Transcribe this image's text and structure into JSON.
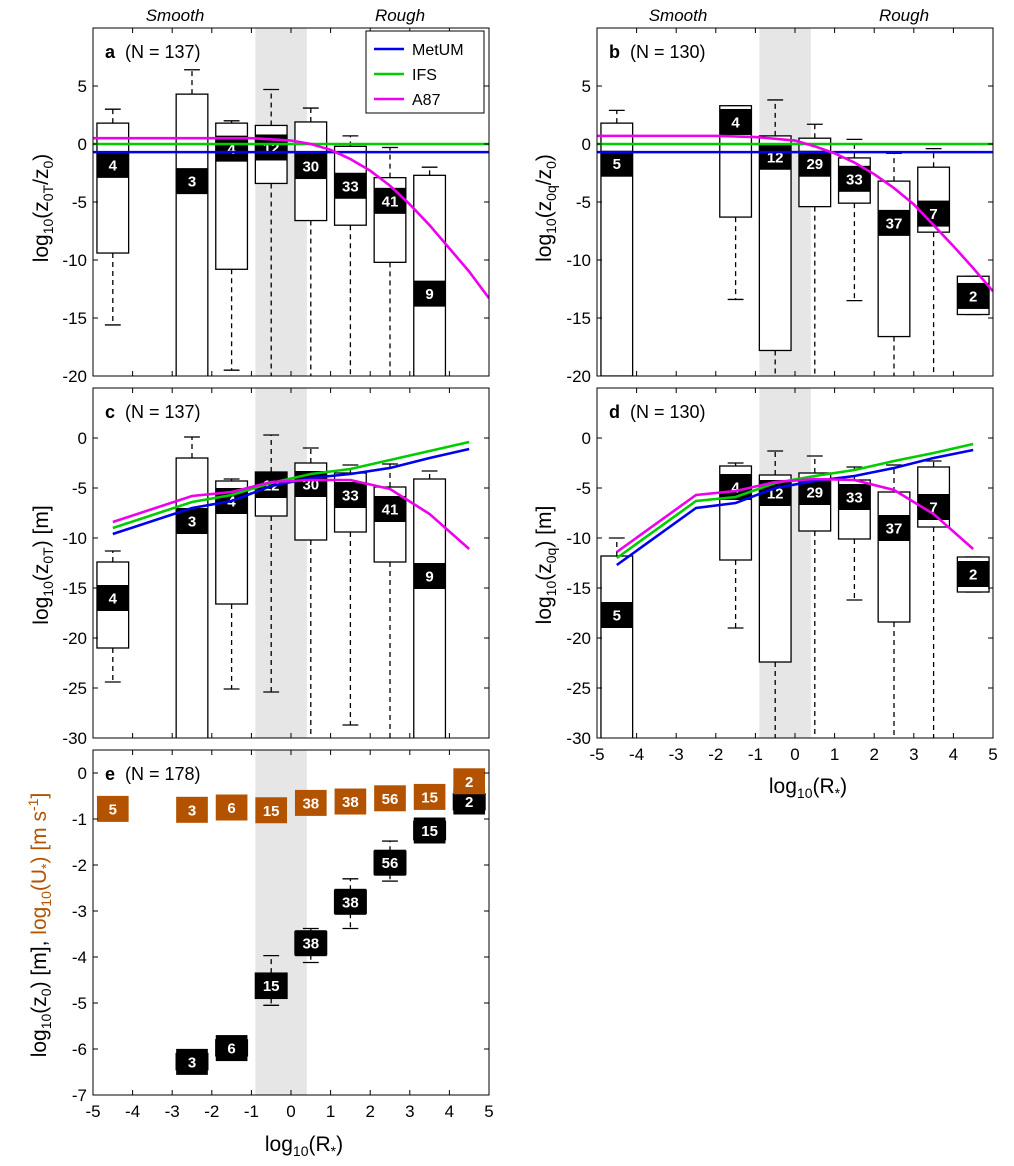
{
  "colors": {
    "MetUM": "#0000ee",
    "IFS": "#00cc00",
    "A87": "#ee00ee",
    "ustar": "#b35300",
    "shade": "#e6e6e6",
    "black": "#000000"
  },
  "header": {
    "smooth": "Smooth",
    "rough": "Rough"
  },
  "axes": {
    "x_label": "log",
    "x_sub": "10",
    "x_tail": "(R",
    "x_star": "*",
    "x_close": ")",
    "y_a": {
      "log": "log",
      "sub": "10",
      "t1": "(z",
      "s1": "0T",
      "t2": "/z",
      "s2": "0",
      "t3": ")"
    },
    "y_b": {
      "log": "log",
      "sub": "10",
      "t1": "(z",
      "s1": "0q",
      "t2": "/z",
      "s2": "0",
      "t3": ")"
    },
    "y_c": {
      "log": "log",
      "sub": "10",
      "t1": "(z",
      "s1": "0T",
      "t2": ") [m]"
    },
    "y_d": {
      "log": "log",
      "sub": "10",
      "t1": "(z",
      "s1": "0q",
      "t2": ") [m]"
    },
    "y_e": {
      "log": "log",
      "sub": "10",
      "t1": "(z",
      "s1": "0",
      "t2": ") [m], ",
      "log2": "log",
      "sub2": "10",
      "t3": "(U",
      "star": "*",
      "t4": ") [m s",
      "sup": "-1",
      "t5": "]"
    }
  },
  "chart_data": [
    {
      "id": "a",
      "type": "box",
      "panel_letter": "a",
      "panel_note": "(N = 137)",
      "xlim": [
        -5,
        5
      ],
      "ylim": [
        -20,
        10
      ],
      "yticks": [
        5,
        0,
        -5,
        -10,
        -15,
        -20
      ],
      "shade": [
        -0.9,
        0.4
      ],
      "legend": [
        "MetUM",
        "IFS",
        "A87"
      ],
      "lines": [
        {
          "name": "MetUM",
          "x": [
            -5,
            5
          ],
          "y": [
            -0.7,
            -0.7
          ]
        },
        {
          "name": "IFS",
          "x": [
            -5,
            5
          ],
          "y": [
            0,
            0
          ]
        },
        {
          "name": "A87",
          "x": [
            -5,
            -4,
            -3,
            -2,
            -1,
            0,
            0.5,
            1,
            1.5,
            2,
            2.5,
            3,
            3.5,
            4,
            4.5,
            5
          ],
          "y": [
            0.5,
            0.5,
            0.5,
            0.5,
            0.5,
            0.3,
            0,
            -0.5,
            -1.3,
            -2.3,
            -3.6,
            -5.2,
            -7.0,
            -9.0,
            -11.0,
            -13.3
          ]
        }
      ],
      "boxes": [
        {
          "x": -4.5,
          "n": "4",
          "q1": -9.4,
          "q3": 1.8,
          "med": -1.8,
          "wlo": -15.6,
          "whi": 3.0
        },
        {
          "x": -2.5,
          "n": "3",
          "q1": -22,
          "q3": 4.3,
          "med": -3.2,
          "wlo": -22,
          "whi": 6.4
        },
        {
          "x": -1.5,
          "n": "4",
          "q1": -10.8,
          "q3": 1.8,
          "med": -0.4,
          "wlo": -19.5,
          "whi": 2.0
        },
        {
          "x": -0.5,
          "n": "12",
          "q1": -3.4,
          "q3": 1.6,
          "med": -0.3,
          "wlo": -22,
          "whi": 4.7
        },
        {
          "x": 0.5,
          "n": "30",
          "q1": -6.6,
          "q3": 1.9,
          "med": -1.9,
          "wlo": -22,
          "whi": 3.1
        },
        {
          "x": 1.5,
          "n": "33",
          "q1": -7.0,
          "q3": -0.2,
          "med": -3.6,
          "wlo": -22,
          "whi": 0.7
        },
        {
          "x": 2.5,
          "n": "41",
          "q1": -10.2,
          "q3": -2.9,
          "med": -4.9,
          "wlo": -22,
          "whi": -0.3
        },
        {
          "x": 3.5,
          "n": "9",
          "q1": -22,
          "q3": -2.7,
          "med": -12.9,
          "wlo": -22,
          "whi": -2.0
        }
      ]
    },
    {
      "id": "b",
      "type": "box",
      "panel_letter": "b",
      "panel_note": "(N = 130)",
      "xlim": [
        -5,
        5
      ],
      "ylim": [
        -20,
        10
      ],
      "yticks": [
        5,
        0,
        -5,
        -10,
        -15,
        -20
      ],
      "shade": [
        -0.9,
        0.4
      ],
      "lines": [
        {
          "name": "MetUM",
          "x": [
            -5,
            5
          ],
          "y": [
            -0.7,
            -0.7
          ]
        },
        {
          "name": "IFS",
          "x": [
            -5,
            5
          ],
          "y": [
            0,
            0
          ]
        },
        {
          "name": "A87",
          "x": [
            -5,
            -4,
            -3,
            -2,
            -1,
            0,
            0.5,
            1,
            1.5,
            2,
            2.5,
            3,
            3.5,
            4,
            4.5,
            5
          ],
          "y": [
            0.7,
            0.7,
            0.7,
            0.7,
            0.6,
            0.3,
            -0.2,
            -0.8,
            -1.6,
            -2.6,
            -3.8,
            -5.2,
            -7.0,
            -8.8,
            -10.7,
            -12.7
          ]
        }
      ],
      "boxes": [
        {
          "x": -4.5,
          "n": "5",
          "q1": -20,
          "q3": 1.8,
          "med": -1.7,
          "wlo": -20,
          "whi": 2.9
        },
        {
          "x": -1.5,
          "n": "4",
          "q1": -6.3,
          "q3": 3.3,
          "med": 1.9,
          "wlo": -13.4,
          "whi": 3.3
        },
        {
          "x": -0.5,
          "n": "12",
          "q1": -17.8,
          "q3": 0.7,
          "med": -1.1,
          "wlo": -22,
          "whi": 3.8
        },
        {
          "x": 0.5,
          "n": "29",
          "q1": -5.4,
          "q3": 0.5,
          "med": -1.7,
          "wlo": -22,
          "whi": 1.7
        },
        {
          "x": 1.5,
          "n": "33",
          "q1": -5.1,
          "q3": -1.2,
          "med": -3.0,
          "wlo": -13.5,
          "whi": 0.4
        },
        {
          "x": 2.5,
          "n": "37",
          "q1": -16.6,
          "q3": -3.2,
          "med": -6.8,
          "wlo": -22,
          "whi": -0.8
        },
        {
          "x": 3.5,
          "n": "7",
          "q1": -7.6,
          "q3": -2.0,
          "med": -6.0,
          "wlo": -22,
          "whi": -0.4
        },
        {
          "x": 4.5,
          "n": "2",
          "q1": -14.7,
          "q3": -11.4,
          "med": -13.1,
          "wlo": -14.7,
          "whi": -11.4
        }
      ]
    },
    {
      "id": "c",
      "type": "box",
      "panel_letter": "c",
      "panel_note": "(N = 137)",
      "xlim": [
        -5,
        5
      ],
      "ylim": [
        -30,
        5
      ],
      "yticks": [
        0,
        -5,
        -10,
        -15,
        -20,
        -25,
        -30
      ],
      "shade": [
        -0.9,
        0.4
      ],
      "lines": [
        {
          "name": "MetUM",
          "x": [
            -4.5,
            -2.5,
            -1.5,
            -0.5,
            0.5,
            1.5,
            2.5,
            3.5,
            4.5
          ],
          "y": [
            -9.6,
            -7.0,
            -6.3,
            -4.8,
            -4.0,
            -3.6,
            -3.0,
            -2.0,
            -1.1
          ]
        },
        {
          "name": "IFS",
          "x": [
            -4.5,
            -2.5,
            -1.5,
            -0.5,
            0.5,
            1.5,
            2.5,
            3.5,
            4.5
          ],
          "y": [
            -9.0,
            -6.4,
            -5.7,
            -4.5,
            -3.6,
            -3.1,
            -2.2,
            -1.3,
            -0.4
          ]
        },
        {
          "name": "A87",
          "x": [
            -4.5,
            -2.5,
            -1.5,
            -0.5,
            0.5,
            1.5,
            2.5,
            3.5,
            4.5
          ],
          "y": [
            -8.4,
            -5.8,
            -5.4,
            -4.4,
            -4.2,
            -4.2,
            -5.1,
            -7.6,
            -11.1
          ]
        }
      ],
      "boxes": [
        {
          "x": -4.5,
          "n": "4",
          "q1": -21.0,
          "q3": -12.4,
          "med": -16.0,
          "wlo": -24.4,
          "whi": -11.3
        },
        {
          "x": -2.5,
          "n": "3",
          "q1": -32,
          "q3": -2.0,
          "med": -8.3,
          "wlo": -32,
          "whi": 0.1
        },
        {
          "x": -1.5,
          "n": "4",
          "q1": -16.6,
          "q3": -4.3,
          "med": -6.3,
          "wlo": -25.1,
          "whi": -4.1
        },
        {
          "x": -0.5,
          "n": "12",
          "q1": -7.8,
          "q3": -3.4,
          "med": -4.7,
          "wlo": -25.4,
          "whi": 0.3
        },
        {
          "x": 0.5,
          "n": "30",
          "q1": -10.2,
          "q3": -2.5,
          "med": -4.6,
          "wlo": -32,
          "whi": -1.0
        },
        {
          "x": 1.5,
          "n": "33",
          "q1": -9.4,
          "q3": -3.5,
          "med": -5.7,
          "wlo": -28.7,
          "whi": -2.7
        },
        {
          "x": 2.5,
          "n": "41",
          "q1": -12.4,
          "q3": -4.9,
          "med": -7.1,
          "wlo": -32,
          "whi": -2.6
        },
        {
          "x": 3.5,
          "n": "9",
          "q1": -32,
          "q3": -4.1,
          "med": -13.8,
          "wlo": -32,
          "whi": -3.3
        }
      ]
    },
    {
      "id": "d",
      "type": "box",
      "panel_letter": "d",
      "panel_note": "(N = 130)",
      "xlim": [
        -5,
        5
      ],
      "ylim": [
        -30,
        5
      ],
      "yticks": [
        0,
        -5,
        -10,
        -15,
        -20,
        -25,
        -30
      ],
      "xticks": [
        -5,
        -4,
        -3,
        -2,
        -1,
        0,
        1,
        2,
        3,
        4,
        5
      ],
      "shade": [
        -0.9,
        0.4
      ],
      "lines": [
        {
          "name": "MetUM",
          "x": [
            -4.5,
            -2.5,
            -1.5,
            -0.5,
            0.5,
            1.5,
            2.5,
            3.5,
            4.5
          ],
          "y": [
            -12.7,
            -7.0,
            -6.5,
            -5.0,
            -4.3,
            -3.8,
            -3.0,
            -2.0,
            -1.2
          ]
        },
        {
          "name": "IFS",
          "x": [
            -4.5,
            -2.5,
            -1.5,
            -0.5,
            0.5,
            1.5,
            2.5,
            3.5,
            4.5
          ],
          "y": [
            -12.0,
            -6.3,
            -5.9,
            -4.5,
            -3.8,
            -3.2,
            -2.3,
            -1.5,
            -0.6
          ]
        },
        {
          "name": "A87",
          "x": [
            -4.5,
            -2.5,
            -1.5,
            -0.5,
            0.5,
            1.5,
            2.5,
            3.5,
            4.5
          ],
          "y": [
            -11.4,
            -5.7,
            -5.3,
            -4.4,
            -4.1,
            -4.2,
            -5.2,
            -7.6,
            -11.1
          ]
        }
      ],
      "boxes": [
        {
          "x": -4.5,
          "n": "5",
          "q1": -32,
          "q3": -11.8,
          "med": -17.7,
          "wlo": -32,
          "whi": -10.0
        },
        {
          "x": -1.5,
          "n": "4",
          "q1": -12.2,
          "q3": -2.8,
          "med": -4.9,
          "wlo": -19.0,
          "whi": -2.5
        },
        {
          "x": -0.5,
          "n": "12",
          "q1": -22.4,
          "q3": -3.7,
          "med": -5.5,
          "wlo": -32,
          "whi": -1.3
        },
        {
          "x": 0.5,
          "n": "29",
          "q1": -9.3,
          "q3": -3.5,
          "med": -5.4,
          "wlo": -32,
          "whi": -1.8
        },
        {
          "x": 1.5,
          "n": "33",
          "q1": -10.1,
          "q3": -4.2,
          "med": -5.9,
          "wlo": -16.2,
          "whi": -2.9
        },
        {
          "x": 2.5,
          "n": "37",
          "q1": -18.4,
          "q3": -5.4,
          "med": -9.0,
          "wlo": -32,
          "whi": -2.7
        },
        {
          "x": 3.5,
          "n": "7",
          "q1": -8.9,
          "q3": -2.9,
          "med": -6.9,
          "wlo": -32,
          "whi": -2.3
        },
        {
          "x": 4.5,
          "n": "2",
          "q1": -15.4,
          "q3": -11.9,
          "med": -13.6,
          "wlo": -15.4,
          "whi": -11.9
        }
      ]
    },
    {
      "id": "e",
      "type": "box",
      "panel_letter": "e",
      "panel_note": "(N = 178)",
      "xlim": [
        -5,
        5
      ],
      "ylim": [
        -7,
        0.5
      ],
      "yticks": [
        0,
        -1,
        -2,
        -3,
        -4,
        -5,
        -6,
        -7
      ],
      "xticks": [
        -5,
        -4,
        -3,
        -2,
        -1,
        0,
        1,
        2,
        3,
        4,
        5
      ],
      "shade": [
        -0.9,
        0.4
      ],
      "z0_boxes": [
        {
          "x": -2.5,
          "n": "3",
          "q1": -6.45,
          "q3": -6.1,
          "med": -6.28,
          "wlo": -6.45,
          "whi": -6.1
        },
        {
          "x": -1.5,
          "n": "6",
          "q1": -6.15,
          "q3": -5.8,
          "med": -5.98,
          "wlo": -6.15,
          "whi": -5.8
        },
        {
          "x": -0.5,
          "n": "15",
          "q1": -4.9,
          "q3": -4.35,
          "med": -4.62,
          "wlo": -5.05,
          "whi": -3.97
        },
        {
          "x": 0.5,
          "n": "38",
          "q1": -3.95,
          "q3": -3.45,
          "med": -3.7,
          "wlo": -4.12,
          "whi": -3.38
        },
        {
          "x": 1.5,
          "n": "38",
          "q1": -3.05,
          "q3": -2.55,
          "med": -2.8,
          "wlo": -3.38,
          "whi": -2.3
        },
        {
          "x": 2.5,
          "n": "56",
          "q1": -2.2,
          "q3": -1.7,
          "med": -1.95,
          "wlo": -2.35,
          "whi": -1.48
        },
        {
          "x": 3.5,
          "n": "15",
          "q1": -1.45,
          "q3": -1.05,
          "med": -1.25,
          "wlo": -1.45,
          "whi": -1.05
        },
        {
          "x": 4.5,
          "n": "2",
          "q1": -0.8,
          "q3": -0.45,
          "med": -0.62,
          "wlo": -0.8,
          "whi": -0.45
        }
      ],
      "ustar_boxes": [
        {
          "x": -4.5,
          "n": "5",
          "q1": -0.98,
          "q3": -0.58,
          "med": -0.78
        },
        {
          "x": -2.5,
          "n": "3",
          "q1": -1.0,
          "q3": -0.6,
          "med": -0.8
        },
        {
          "x": -1.5,
          "n": "6",
          "q1": -0.95,
          "q3": -0.55,
          "med": -0.75
        },
        {
          "x": -0.5,
          "n": "15",
          "q1": -1.0,
          "q3": -0.62,
          "med": -0.81
        },
        {
          "x": 0.5,
          "n": "38",
          "q1": -0.85,
          "q3": -0.45,
          "med": -0.65
        },
        {
          "x": 1.5,
          "n": "38",
          "q1": -0.82,
          "q3": -0.42,
          "med": -0.62
        },
        {
          "x": 2.5,
          "n": "56",
          "q1": -0.75,
          "q3": -0.35,
          "med": -0.55
        },
        {
          "x": 3.5,
          "n": "15",
          "q1": -0.72,
          "q3": -0.32,
          "med": -0.52
        },
        {
          "x": 4.5,
          "n": "2",
          "q1": -0.45,
          "q3": 0.0,
          "med": -0.18
        }
      ]
    }
  ]
}
